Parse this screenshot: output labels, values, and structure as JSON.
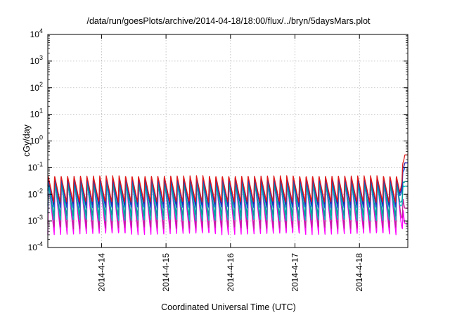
{
  "chart_data": {
    "type": "line",
    "title": "/data/run/goesPlots/archive/2014-04-18/18:00/flux/../bryn/5daysMars.plot",
    "xlabel": "Coordinated Universal Time (UTC)",
    "ylabel": "cGy/day",
    "y_scale": "log",
    "ylim_exponents": [
      -4,
      4
    ],
    "y_ticks": [
      {
        "base": "10",
        "exp": "4",
        "value": 10000
      },
      {
        "base": "10",
        "exp": "3",
        "value": 1000
      },
      {
        "base": "10",
        "exp": "2",
        "value": 100
      },
      {
        "base": "10",
        "exp": "1",
        "value": 10
      },
      {
        "base": "10",
        "exp": "0",
        "value": 1
      },
      {
        "base": "10",
        "exp": "-1",
        "value": 0.1
      },
      {
        "base": "10",
        "exp": "-2",
        "value": 0.01
      },
      {
        "base": "10",
        "exp": "-3",
        "value": 0.001
      },
      {
        "base": "10",
        "exp": "-4",
        "value": 0.0001
      }
    ],
    "x_ticks": [
      "2014-4-14",
      "2014-4-15",
      "2014-4-16",
      "2014-4-17",
      "2014-4-18"
    ],
    "xlim": [
      "2014-04-13T04:00",
      "2014-04-18T18:00"
    ],
    "grid": true,
    "legend": "none",
    "periodic_pattern": {
      "cycles_per_day": 10.0,
      "start": "2014-04-13T04:00",
      "spike_start": "2014-04-18T15:00",
      "note": "sawtooth: rapid rise to peak then gradual decay each cycle"
    },
    "series": [
      {
        "color": "#ff00ff",
        "peak": 0.03,
        "trough": 0.0003,
        "final": 0.0008
      },
      {
        "color": "#c0209a",
        "peak": 0.035,
        "trough": 0.0005,
        "final": 0.003
      },
      {
        "color": "#00c0c0",
        "peak": 0.025,
        "trough": 0.001,
        "final": 0.02
      },
      {
        "color": "#009a9a",
        "peak": 0.03,
        "trough": 0.0015,
        "final": 0.03
      },
      {
        "color": "#1a4bd6",
        "peak": 0.04,
        "trough": 0.003,
        "final": 0.1
      },
      {
        "color": "#2c1fb0",
        "peak": 0.045,
        "trough": 0.004,
        "final": 0.15
      },
      {
        "color": "#e01b1b",
        "peak": 0.05,
        "trough": 0.005,
        "final": 0.3
      }
    ]
  }
}
